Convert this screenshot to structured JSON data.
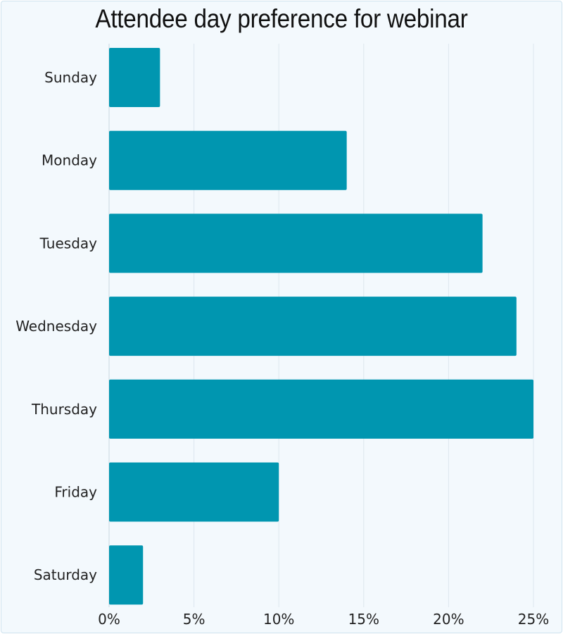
{
  "chart_data": {
    "type": "bar",
    "orientation": "horizontal",
    "title": "Attendee day preference for webinar",
    "categories": [
      "Sunday",
      "Monday",
      "Tuesday",
      "Wednesday",
      "Thursday",
      "Friday",
      "Saturday"
    ],
    "values": [
      3,
      14,
      22,
      24,
      25,
      10,
      2
    ],
    "value_unit": "%",
    "xlim": [
      0,
      25
    ],
    "x_ticks": [
      "0%",
      "5%",
      "10%",
      "15%",
      "20%",
      "25%"
    ],
    "x_tick_values": [
      0,
      5,
      10,
      15,
      20,
      25
    ],
    "xlabel": "",
    "ylabel": "",
    "grid": "vertical",
    "legend": "none",
    "bar_color": "#0096b0",
    "background_color": "#f3f9fd",
    "grid_color": "#dde7ee"
  }
}
